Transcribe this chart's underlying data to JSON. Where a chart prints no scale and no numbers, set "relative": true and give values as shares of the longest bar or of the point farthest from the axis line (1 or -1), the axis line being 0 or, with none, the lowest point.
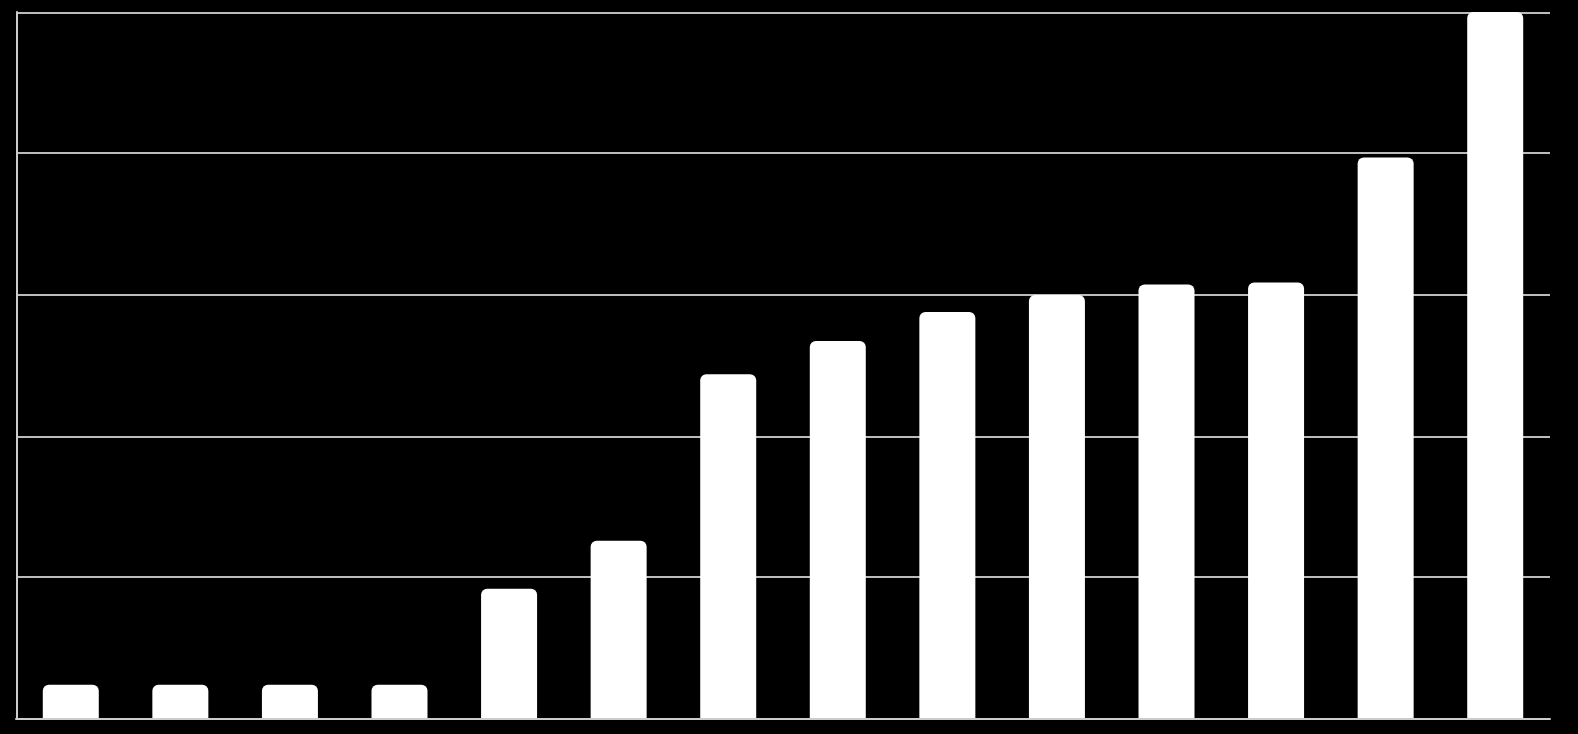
{
  "chart_data": {
    "type": "bar",
    "relative": true,
    "categories": [
      null,
      null,
      null,
      null,
      null,
      null,
      null,
      null,
      null,
      null,
      null,
      null,
      null,
      null
    ],
    "values": [
      0.047,
      0.047,
      0.047,
      0.047,
      0.183,
      0.251,
      0.487,
      0.534,
      0.575,
      0.599,
      0.614,
      0.617,
      0.794,
      1
    ],
    "color": "#ffffff",
    "grid": "y"
  }
}
